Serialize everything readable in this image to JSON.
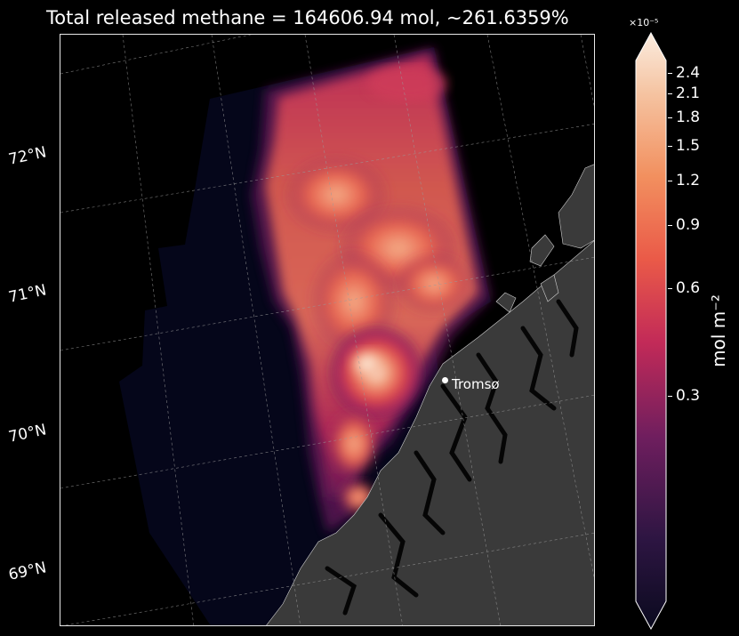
{
  "title": "Total released methane = 164606.94 mol, ∼261.6359%",
  "map": {
    "lat_labels": [
      "72°N",
      "71°N",
      "70°N",
      "69°N"
    ],
    "city": "Tromsø",
    "land_color": "#3a3a3a",
    "ocean_color": "#000000",
    "domain_background": "#05061a"
  },
  "colorbar": {
    "label": "mol m$^{-2}$",
    "label_display": "mol m⁻²",
    "exponent": "×10⁻⁵",
    "colormap": "rocket",
    "scale": "log",
    "extend": "both",
    "ticks": [
      {
        "value": 2.4,
        "label": "2.4"
      },
      {
        "value": 2.1,
        "label": "2.1"
      },
      {
        "value": 1.8,
        "label": "1.8"
      },
      {
        "value": 1.5,
        "label": "1.5"
      },
      {
        "value": 1.2,
        "label": "1.2"
      },
      {
        "value": 0.9,
        "label": "0.9"
      },
      {
        "value": 0.6,
        "label": "0.6"
      },
      {
        "value": 0.3,
        "label": "0.3"
      }
    ]
  }
}
